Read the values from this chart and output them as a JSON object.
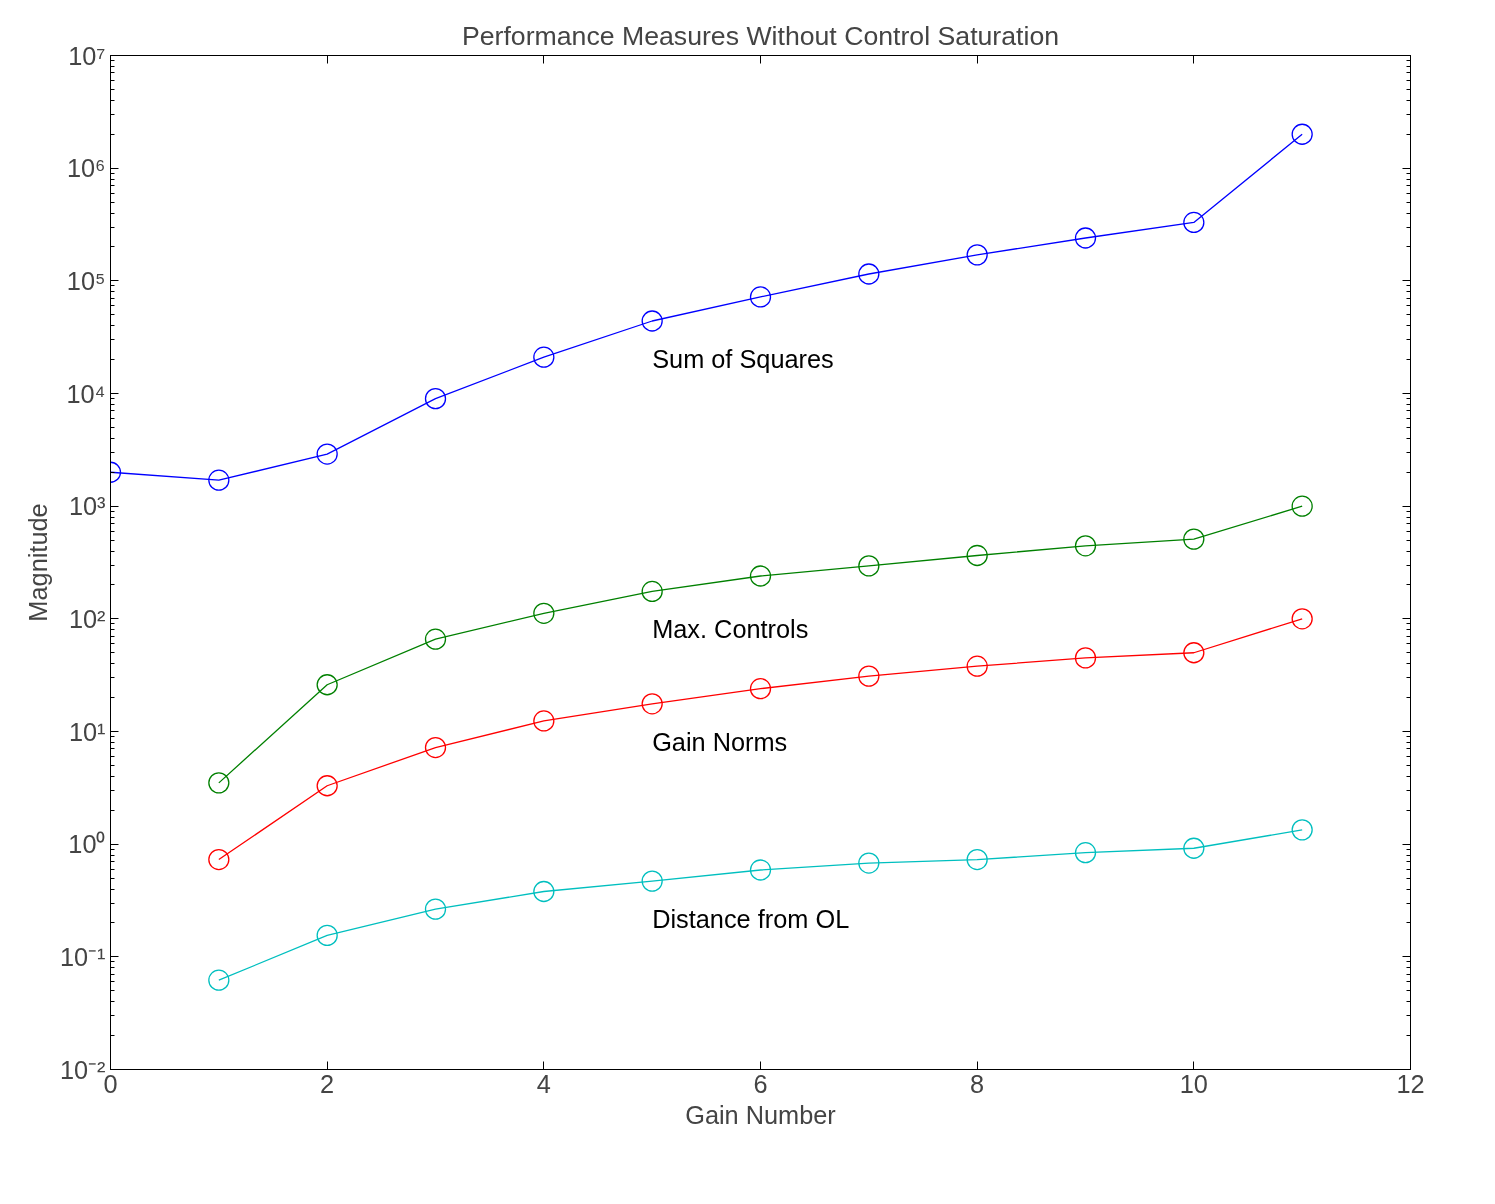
{
  "chart_data": {
    "type": "line",
    "title": "Performance Measures Without Control Saturation",
    "xlabel": "Gain Number",
    "ylabel": "Magnitude",
    "x": [
      0,
      1,
      2,
      3,
      4,
      5,
      6,
      7,
      8,
      9,
      10,
      11
    ],
    "series": [
      {
        "name": "Sum of Squares",
        "color": "#0000ff",
        "values": [
          2000,
          1700,
          2900,
          9000,
          21000,
          44000,
          72000,
          115000,
          170000,
          240000,
          330000,
          2000000
        ]
      },
      {
        "name": "Max. Controls",
        "color": "#008000",
        "values": [
          null,
          3.5,
          26,
          66,
          112,
          175,
          240,
          295,
          365,
          445,
          510,
          1000
        ]
      },
      {
        "name": "Gain Norms",
        "color": "#ff0000",
        "values": [
          null,
          0.73,
          3.3,
          7.2,
          12.4,
          17.6,
          24,
          31,
          38,
          45,
          50,
          100
        ]
      },
      {
        "name": "Distance from OL",
        "color": "#00bfbf",
        "values": [
          null,
          0.062,
          0.155,
          0.265,
          0.38,
          0.47,
          0.59,
          0.68,
          0.73,
          0.84,
          0.92,
          1.34
        ]
      }
    ],
    "log": "y",
    "marker": "circle",
    "line_style": "solid",
    "grid": false,
    "legend": false,
    "xlim": [
      0,
      12
    ],
    "xticks": [
      0,
      2,
      4,
      6,
      8,
      10,
      12
    ],
    "ylim": [
      0.01,
      10000000
    ],
    "yticks": [
      {
        "value": 0.01,
        "label": "10⁻²"
      },
      {
        "value": 0.1,
        "label": "10⁻¹"
      },
      {
        "value": 1,
        "label": "10⁰"
      },
      {
        "value": 10,
        "label": "10¹"
      },
      {
        "value": 100,
        "label": "10²"
      },
      {
        "value": 1000,
        "label": "10³"
      },
      {
        "value": 10000,
        "label": "10⁴"
      },
      {
        "value": 100000,
        "label": "10⁵"
      },
      {
        "value": 1000000,
        "label": "10⁶"
      },
      {
        "value": 10000000,
        "label": "10⁷"
      }
    ]
  }
}
